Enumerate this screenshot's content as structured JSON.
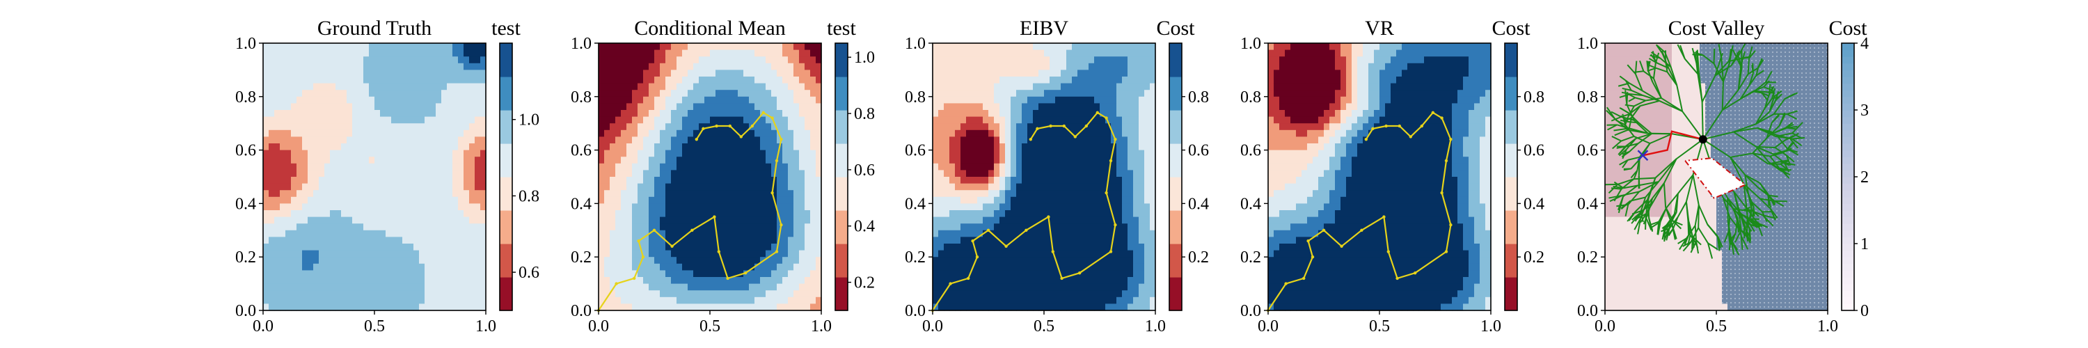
{
  "chart_data": [
    {
      "type": "heatmap",
      "title": "Ground Truth",
      "colorbar_label": "test",
      "colorbar_ticks": [
        "0.6",
        "0.8",
        "1.0"
      ],
      "colorbar_tick_values": [
        0.6,
        0.8,
        1.0
      ],
      "clim": [
        0.5,
        1.2
      ],
      "cmap": "RdBu",
      "xlim": [
        0,
        1
      ],
      "ylim": [
        0,
        1
      ],
      "x_ticks": [
        "0.0",
        "0.5",
        "1.0"
      ],
      "y_ticks": [
        "0.0",
        "0.2",
        "0.4",
        "0.6",
        "0.8",
        "1.0"
      ],
      "path": []
    },
    {
      "type": "heatmap",
      "title": "Conditional Mean",
      "colorbar_label": "test",
      "colorbar_ticks": [
        "0.2",
        "0.4",
        "0.6",
        "0.8",
        "1.0"
      ],
      "colorbar_tick_values": [
        0.2,
        0.4,
        0.6,
        0.8,
        1.0
      ],
      "clim": [
        0.1,
        1.05
      ],
      "cmap": "RdBu",
      "xlim": [
        0,
        1
      ],
      "ylim": [
        0,
        1
      ],
      "x_ticks": [
        "0.0",
        "0.5",
        "1.0"
      ],
      "y_ticks": [
        "0.0",
        "0.2",
        "0.4",
        "0.6",
        "0.8",
        "1.0"
      ],
      "path": [
        [
          0.0,
          0.0
        ],
        [
          0.08,
          0.1
        ],
        [
          0.16,
          0.12
        ],
        [
          0.2,
          0.2
        ],
        [
          0.18,
          0.26
        ],
        [
          0.25,
          0.3
        ],
        [
          0.33,
          0.24
        ],
        [
          0.42,
          0.3
        ],
        [
          0.52,
          0.35
        ],
        [
          0.54,
          0.22
        ],
        [
          0.58,
          0.12
        ],
        [
          0.66,
          0.14
        ],
        [
          0.8,
          0.22
        ],
        [
          0.82,
          0.32
        ],
        [
          0.78,
          0.44
        ],
        [
          0.8,
          0.56
        ],
        [
          0.82,
          0.64
        ],
        [
          0.78,
          0.72
        ],
        [
          0.74,
          0.74
        ],
        [
          0.69,
          0.69
        ],
        [
          0.64,
          0.65
        ],
        [
          0.59,
          0.69
        ],
        [
          0.53,
          0.69
        ],
        [
          0.47,
          0.68
        ],
        [
          0.44,
          0.64
        ]
      ]
    },
    {
      "type": "heatmap",
      "title": "EIBV",
      "colorbar_label": "Cost",
      "colorbar_ticks": [
        "0.2",
        "0.4",
        "0.6",
        "0.8"
      ],
      "colorbar_tick_values": [
        0.2,
        0.4,
        0.6,
        0.8
      ],
      "clim": [
        0.0,
        1.0
      ],
      "cmap": "RdBu",
      "xlim": [
        0,
        1
      ],
      "ylim": [
        0,
        1
      ],
      "x_ticks": [
        "0.0",
        "0.5",
        "1.0"
      ],
      "y_ticks": [
        "0.0",
        "0.2",
        "0.4",
        "0.6",
        "0.8",
        "1.0"
      ],
      "path": [
        [
          0.0,
          0.0
        ],
        [
          0.08,
          0.1
        ],
        [
          0.16,
          0.12
        ],
        [
          0.2,
          0.2
        ],
        [
          0.18,
          0.26
        ],
        [
          0.25,
          0.3
        ],
        [
          0.33,
          0.24
        ],
        [
          0.42,
          0.3
        ],
        [
          0.52,
          0.35
        ],
        [
          0.54,
          0.22
        ],
        [
          0.58,
          0.12
        ],
        [
          0.66,
          0.14
        ],
        [
          0.8,
          0.22
        ],
        [
          0.82,
          0.32
        ],
        [
          0.78,
          0.44
        ],
        [
          0.8,
          0.56
        ],
        [
          0.82,
          0.64
        ],
        [
          0.78,
          0.72
        ],
        [
          0.74,
          0.74
        ],
        [
          0.69,
          0.69
        ],
        [
          0.64,
          0.65
        ],
        [
          0.59,
          0.69
        ],
        [
          0.53,
          0.69
        ],
        [
          0.47,
          0.68
        ],
        [
          0.44,
          0.64
        ]
      ]
    },
    {
      "type": "heatmap",
      "title": "VR",
      "colorbar_label": "Cost",
      "colorbar_ticks": [
        "0.2",
        "0.4",
        "0.6",
        "0.8"
      ],
      "colorbar_tick_values": [
        0.2,
        0.4,
        0.6,
        0.8
      ],
      "clim": [
        0.0,
        1.0
      ],
      "cmap": "RdBu",
      "xlim": [
        0,
        1
      ],
      "ylim": [
        0,
        1
      ],
      "x_ticks": [
        "0.0",
        "0.5",
        "1.0"
      ],
      "y_ticks": [
        "0.0",
        "0.2",
        "0.4",
        "0.6",
        "0.8",
        "1.0"
      ],
      "path": [
        [
          0.0,
          0.0
        ],
        [
          0.08,
          0.1
        ],
        [
          0.16,
          0.12
        ],
        [
          0.2,
          0.2
        ],
        [
          0.18,
          0.26
        ],
        [
          0.25,
          0.3
        ],
        [
          0.33,
          0.24
        ],
        [
          0.42,
          0.3
        ],
        [
          0.52,
          0.35
        ],
        [
          0.54,
          0.22
        ],
        [
          0.58,
          0.12
        ],
        [
          0.66,
          0.14
        ],
        [
          0.8,
          0.22
        ],
        [
          0.82,
          0.32
        ],
        [
          0.78,
          0.44
        ],
        [
          0.8,
          0.56
        ],
        [
          0.82,
          0.64
        ],
        [
          0.78,
          0.72
        ],
        [
          0.74,
          0.74
        ],
        [
          0.69,
          0.69
        ],
        [
          0.64,
          0.65
        ],
        [
          0.59,
          0.69
        ],
        [
          0.53,
          0.69
        ],
        [
          0.47,
          0.68
        ],
        [
          0.44,
          0.64
        ]
      ]
    },
    {
      "type": "heatmap",
      "title": "Cost Valley",
      "colorbar_label": "Cost",
      "colorbar_ticks": [
        "0",
        "1",
        "2",
        "3",
        "4"
      ],
      "colorbar_tick_values": [
        0,
        1,
        2,
        3,
        4
      ],
      "clim": [
        0,
        4
      ],
      "cmap": "PuBu",
      "xlim": [
        0,
        1
      ],
      "ylim": [
        0,
        1
      ],
      "x_ticks": [
        "0.0",
        "0.5",
        "1.0"
      ],
      "y_ticks": [
        "0.0",
        "0.2",
        "0.4",
        "0.6",
        "0.8",
        "1.0"
      ],
      "current_location": [
        0.44,
        0.64
      ],
      "start_marker": [
        0.17,
        0.58
      ],
      "tree_root": [
        0.44,
        0.64
      ],
      "red_path": [
        [
          0.44,
          0.64
        ],
        [
          0.3,
          0.67
        ],
        [
          0.28,
          0.6
        ],
        [
          0.17,
          0.58
        ]
      ],
      "dashed_polygon": [
        [
          0.36,
          0.56
        ],
        [
          0.49,
          0.42
        ],
        [
          0.63,
          0.47
        ],
        [
          0.48,
          0.57
        ],
        [
          0.36,
          0.56
        ]
      ]
    }
  ]
}
